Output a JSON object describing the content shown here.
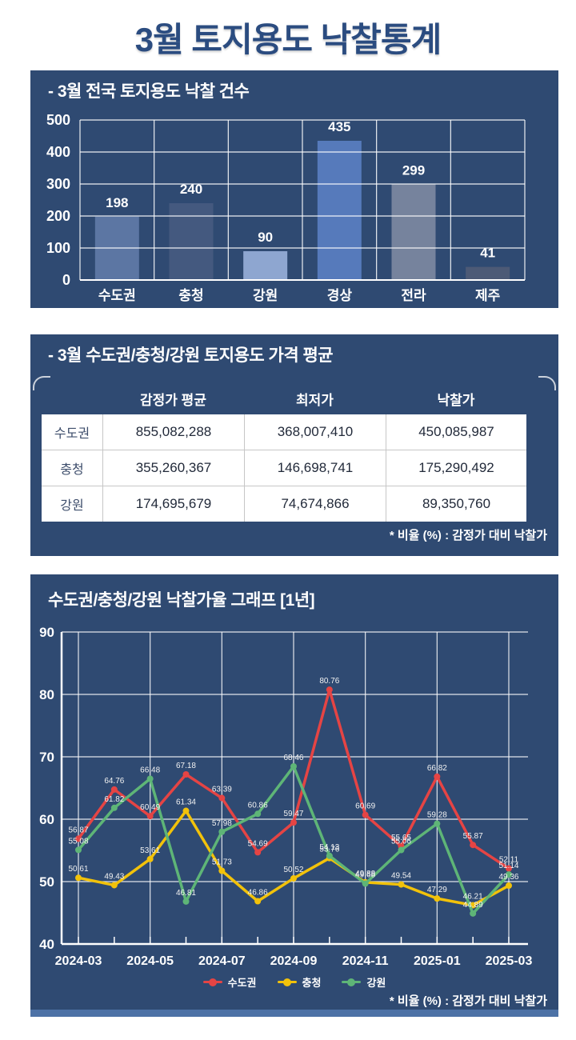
{
  "page": {
    "title": "3월 토지용도 낙찰통계"
  },
  "colors": {
    "section_bg": "#2f4a72",
    "title_blue": "#2b4c80",
    "accent_strip": "#4d72a6",
    "grid_white": "#ffffff",
    "series_red": "#e54444",
    "series_yellow": "#f2c20a",
    "series_green": "#5eb577"
  },
  "chart_data": [
    {
      "type": "bar",
      "title": "- 3월 전국 토지용도 낙찰 건수",
      "categories": [
        "수도권",
        "충청",
        "강원",
        "경상",
        "전라",
        "제주"
      ],
      "values": [
        198,
        240,
        90,
        435,
        299,
        41
      ],
      "bar_colors": [
        "#5c76a3",
        "#44597f",
        "#8ea6d0",
        "#567abb",
        "#76839d",
        "#4d5a76"
      ],
      "ylim": [
        0,
        500
      ],
      "yticks": [
        0,
        100,
        200,
        300,
        400,
        500
      ],
      "grid": true,
      "value_labels": true
    },
    {
      "type": "table",
      "title": "- 3월 수도권/충청/강원 토지용도 가격 평균",
      "columns": [
        "감정가 평균",
        "최저가",
        "낙찰가"
      ],
      "rows": [
        {
          "label": "수도권",
          "values": [
            "855,082,288",
            "368,007,410",
            "450,085,987"
          ]
        },
        {
          "label": "충청",
          "values": [
            "355,260,367",
            "146,698,741",
            "175,290,492"
          ]
        },
        {
          "label": "강원",
          "values": [
            "174,695,679",
            "74,674,866",
            "89,350,760"
          ]
        }
      ],
      "footnote": "* 비율 (%) : 감정가 대비 낙찰가"
    },
    {
      "type": "line",
      "title": "수도권/충청/강원 낙찰가율 그래프 [1년]",
      "x": [
        "2024-03",
        "2024-04",
        "2024-05",
        "2024-06",
        "2024-07",
        "2024-08",
        "2024-09",
        "2024-10",
        "2024-11",
        "2024-12",
        "2025-01",
        "2025-02",
        "2025-03"
      ],
      "xtick_labels": [
        "2024-03",
        "2024-05",
        "2024-07",
        "2024-09",
        "2024-11",
        "2025-01",
        "2025-03"
      ],
      "ylim": [
        40,
        90
      ],
      "yticks": [
        40,
        50,
        60,
        70,
        80,
        90
      ],
      "grid": true,
      "legend_position": "bottom",
      "series": [
        {
          "name": "수도권",
          "color": "#e54444",
          "values": [
            56.87,
            64.76,
            60.49,
            67.18,
            63.39,
            54.69,
            59.47,
            80.76,
            60.69,
            55.65,
            66.82,
            55.87,
            52.11
          ]
        },
        {
          "name": "충청",
          "color": "#f2c20a",
          "values": [
            50.61,
            49.43,
            53.61,
            61.34,
            51.73,
            46.86,
            50.52,
            53.76,
            49.88,
            49.54,
            47.29,
            46.21,
            49.36
          ]
        },
        {
          "name": "강원",
          "color": "#5eb577",
          "values": [
            55.08,
            61.82,
            66.48,
            46.81,
            57.98,
            60.86,
            68.46,
            54.13,
            49.68,
            55.06,
            59.28,
            44.89,
            51.14
          ]
        }
      ],
      "footnote": "* 비율 (%) : 감정가 대비 낙찰가"
    }
  ]
}
